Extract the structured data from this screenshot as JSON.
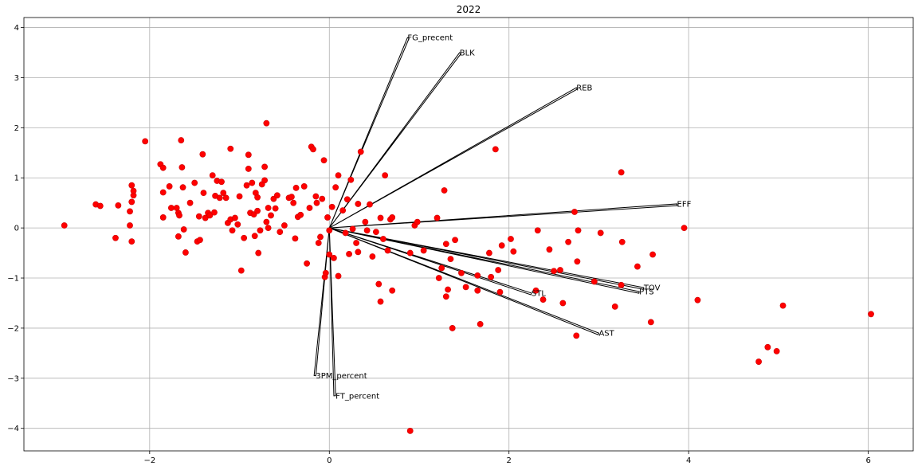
{
  "chart_data": {
    "type": "scatter",
    "title": "2022",
    "xlabel": "",
    "ylabel": "",
    "xlim": [
      -3.4,
      6.5
    ],
    "ylim": [
      -4.45,
      4.2
    ],
    "grid": true,
    "xticks": [
      -2,
      0,
      2,
      4,
      6
    ],
    "yticks": [
      -4,
      -3,
      -2,
      -1,
      0,
      1,
      2,
      3,
      4
    ],
    "point_color": "#ff0000",
    "point_edge_color": "#cc0000",
    "vector_color": "#000000",
    "points": [
      [
        -2.95,
        0.05
      ],
      [
        -2.6,
        0.47
      ],
      [
        -2.55,
        0.44
      ],
      [
        -2.35,
        0.45
      ],
      [
        -2.38,
        -0.2
      ],
      [
        -2.22,
        0.05
      ],
      [
        -2.22,
        0.33
      ],
      [
        -2.2,
        0.85
      ],
      [
        -2.18,
        0.65
      ],
      [
        -2.18,
        0.74
      ],
      [
        -2.2,
        0.52
      ],
      [
        -2.2,
        -0.27
      ],
      [
        -2.05,
        1.73
      ],
      [
        -1.88,
        1.27
      ],
      [
        -1.85,
        1.2
      ],
      [
        -1.85,
        0.71
      ],
      [
        -1.85,
        0.21
      ],
      [
        -1.78,
        0.83
      ],
      [
        -1.76,
        0.4
      ],
      [
        -1.7,
        0.4
      ],
      [
        -1.68,
        0.3
      ],
      [
        -1.68,
        -0.17
      ],
      [
        -1.67,
        0.25
      ],
      [
        -1.65,
        1.75
      ],
      [
        -1.64,
        1.21
      ],
      [
        -1.63,
        0.81
      ],
      [
        -1.6,
        -0.49
      ],
      [
        -1.62,
        -0.03
      ],
      [
        -1.55,
        0.5
      ],
      [
        -1.5,
        0.9
      ],
      [
        -1.47,
        -0.27
      ],
      [
        -1.44,
        -0.24
      ],
      [
        -1.45,
        0.23
      ],
      [
        -1.4,
        0.7
      ],
      [
        -1.41,
        1.47
      ],
      [
        -1.38,
        0.2
      ],
      [
        -1.35,
        0.3
      ],
      [
        -1.33,
        0.25
      ],
      [
        -1.3,
        1.05
      ],
      [
        -1.28,
        0.31
      ],
      [
        -1.27,
        0.64
      ],
      [
        -1.25,
        0.94
      ],
      [
        -1.22,
        0.6
      ],
      [
        -1.2,
        0.92
      ],
      [
        -1.18,
        0.7
      ],
      [
        -1.15,
        0.6
      ],
      [
        -1.13,
        0.1
      ],
      [
        -1.1,
        0.17
      ],
      [
        -1.1,
        1.58
      ],
      [
        -1.08,
        -0.05
      ],
      [
        -1.05,
        0.2
      ],
      [
        -1.02,
        0.07
      ],
      [
        -1.0,
        0.63
      ],
      [
        -0.98,
        -0.85
      ],
      [
        -0.95,
        -0.2
      ],
      [
        -0.92,
        0.85
      ],
      [
        -0.9,
        1.46
      ],
      [
        -0.9,
        1.18
      ],
      [
        -0.88,
        0.3
      ],
      [
        -0.86,
        0.9
      ],
      [
        -0.84,
        0.27
      ],
      [
        -0.83,
        -0.16
      ],
      [
        -0.82,
        0.7
      ],
      [
        -0.8,
        0.61
      ],
      [
        -0.8,
        0.34
      ],
      [
        -0.79,
        -0.5
      ],
      [
        -0.77,
        -0.05
      ],
      [
        -0.75,
        0.87
      ],
      [
        -0.72,
        1.22
      ],
      [
        -0.72,
        0.95
      ],
      [
        -0.7,
        2.09
      ],
      [
        -0.7,
        0.12
      ],
      [
        -0.68,
        0.0
      ],
      [
        -0.68,
        0.4
      ],
      [
        -0.65,
        0.25
      ],
      [
        -0.62,
        0.58
      ],
      [
        -0.6,
        0.39
      ],
      [
        -0.58,
        0.65
      ],
      [
        -0.55,
        -0.08
      ],
      [
        -0.5,
        0.05
      ],
      [
        -0.45,
        0.6
      ],
      [
        -0.42,
        0.62
      ],
      [
        -0.4,
        0.5
      ],
      [
        -0.38,
        -0.21
      ],
      [
        -0.37,
        0.8
      ],
      [
        -0.35,
        0.22
      ],
      [
        -0.32,
        0.26
      ],
      [
        -0.28,
        0.83
      ],
      [
        -0.25,
        -0.71
      ],
      [
        -0.22,
        0.4
      ],
      [
        -0.2,
        1.62
      ],
      [
        -0.18,
        1.57
      ],
      [
        -0.15,
        0.63
      ],
      [
        -0.14,
        0.5
      ],
      [
        -0.12,
        -0.3
      ],
      [
        -0.1,
        -0.18
      ],
      [
        -0.08,
        0.58
      ],
      [
        -0.06,
        1.35
      ],
      [
        -0.05,
        -0.98
      ],
      [
        -0.04,
        -0.9
      ],
      [
        -0.02,
        0.21
      ],
      [
        0.0,
        -0.05
      ],
      [
        0.0,
        -0.53
      ],
      [
        0.03,
        0.42
      ],
      [
        0.05,
        -0.6
      ],
      [
        0.07,
        0.81
      ],
      [
        0.1,
        -0.96
      ],
      [
        0.1,
        1.05
      ],
      [
        0.15,
        0.35
      ],
      [
        0.18,
        -0.1
      ],
      [
        0.2,
        0.57
      ],
      [
        0.22,
        -0.52
      ],
      [
        0.24,
        0.96
      ],
      [
        0.26,
        -0.02
      ],
      [
        0.3,
        -0.3
      ],
      [
        0.32,
        0.48
      ],
      [
        0.32,
        -0.48
      ],
      [
        0.35,
        1.52
      ],
      [
        0.4,
        0.12
      ],
      [
        0.42,
        -0.05
      ],
      [
        0.45,
        0.47
      ],
      [
        0.48,
        -0.57
      ],
      [
        0.52,
        -0.08
      ],
      [
        0.55,
        -1.12
      ],
      [
        0.57,
        0.2
      ],
      [
        0.57,
        -1.47
      ],
      [
        0.6,
        -0.22
      ],
      [
        0.62,
        1.05
      ],
      [
        0.65,
        -0.45
      ],
      [
        0.68,
        0.17
      ],
      [
        0.7,
        0.21
      ],
      [
        0.7,
        -1.25
      ],
      [
        0.9,
        -0.5
      ],
      [
        0.95,
        0.05
      ],
      [
        0.98,
        0.12
      ],
      [
        1.05,
        -0.45
      ],
      [
        1.2,
        0.2
      ],
      [
        1.22,
        -1.0
      ],
      [
        1.25,
        -0.8
      ],
      [
        1.28,
        0.75
      ],
      [
        1.3,
        -1.37
      ],
      [
        1.3,
        -0.32
      ],
      [
        1.32,
        -1.23
      ],
      [
        1.35,
        -0.62
      ],
      [
        1.37,
        -2.0
      ],
      [
        1.4,
        -0.24
      ],
      [
        1.47,
        -0.9
      ],
      [
        1.52,
        -1.18
      ],
      [
        1.65,
        -0.95
      ],
      [
        1.65,
        -1.25
      ],
      [
        1.68,
        -1.92
      ],
      [
        1.78,
        -0.5
      ],
      [
        1.8,
        -0.98
      ],
      [
        1.85,
        1.57
      ],
      [
        1.88,
        -0.84
      ],
      [
        1.9,
        -1.28
      ],
      [
        1.92,
        -0.35
      ],
      [
        2.02,
        -0.22
      ],
      [
        2.05,
        -0.47
      ],
      [
        2.3,
        -1.25
      ],
      [
        2.32,
        -0.05
      ],
      [
        2.38,
        -1.43
      ],
      [
        2.45,
        -0.43
      ],
      [
        2.5,
        -0.86
      ],
      [
        2.57,
        -0.84
      ],
      [
        2.6,
        -1.5
      ],
      [
        2.66,
        -0.28
      ],
      [
        2.73,
        0.32
      ],
      [
        2.75,
        -2.15
      ],
      [
        2.77,
        -0.05
      ],
      [
        2.76,
        -0.67
      ],
      [
        2.95,
        -1.07
      ],
      [
        3.02,
        -0.1
      ],
      [
        3.18,
        -1.57
      ],
      [
        3.25,
        1.11
      ],
      [
        3.25,
        -1.14
      ],
      [
        3.26,
        -0.28
      ],
      [
        3.43,
        -0.77
      ],
      [
        3.58,
        -1.88
      ],
      [
        3.6,
        -0.53
      ],
      [
        3.95,
        0.0
      ],
      [
        4.1,
        -1.44
      ],
      [
        4.78,
        -2.67
      ],
      [
        4.88,
        -2.38
      ],
      [
        4.98,
        -2.46
      ],
      [
        5.05,
        -1.55
      ],
      [
        6.03,
        -1.72
      ],
      [
        0.9,
        -4.05
      ]
    ],
    "vectors": [
      {
        "label": "FG_precent",
        "x": 0.87,
        "y": 3.8
      },
      {
        "label": "BLK",
        "x": 1.45,
        "y": 3.5
      },
      {
        "label": "REB",
        "x": 2.75,
        "y": 2.8
      },
      {
        "label": "EFF",
        "x": 3.87,
        "y": 0.48
      },
      {
        "label": "TOV",
        "x": 3.5,
        "y": -1.19
      },
      {
        "label": "PTS",
        "x": 3.45,
        "y": -1.27
      },
      {
        "label": "STL",
        "x": 2.25,
        "y": -1.3
      },
      {
        "label": "AST",
        "x": 3.0,
        "y": -2.1
      },
      {
        "label": "3PM_percent",
        "x": -0.15,
        "y": -2.95
      },
      {
        "label": "FT_percent",
        "x": 0.07,
        "y": -3.35
      }
    ]
  }
}
